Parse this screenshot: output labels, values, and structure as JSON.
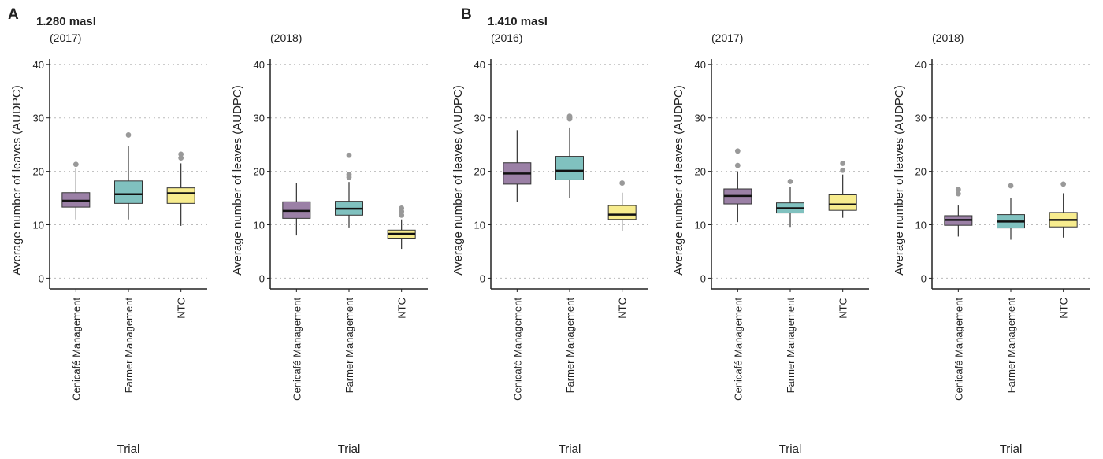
{
  "panel_groups": [
    {
      "label": "A",
      "site": "1.280 masl"
    },
    {
      "label": "B",
      "site": "1.410 masl"
    }
  ],
  "common": {
    "ylabel": "Average number of leaves  (AUDPC)",
    "xlabel": "Trial",
    "yticks": [
      0,
      10,
      20,
      30,
      40
    ],
    "ylim": [
      -2,
      41
    ],
    "categories": [
      "Cenicafé Management",
      "Farmer Management",
      "NTC"
    ]
  },
  "colors": {
    "Cenicafé Management": "#9b80a6",
    "Farmer Management": "#80c1bf",
    "NTC": "#f7ec8e",
    "outlier": "#999999",
    "grid": "#bbbbbb",
    "axis": "#222222"
  },
  "chart_data": [
    {
      "type": "box",
      "group": "A",
      "year": "(2017)",
      "categories": [
        "Cenicafé Management",
        "Farmer Management",
        "NTC"
      ],
      "ylabel": "Average number of leaves  (AUDPC)",
      "xlabel": "Trial",
      "ylim": [
        -2,
        41
      ],
      "boxes": [
        {
          "name": "Cenicafé Management",
          "min": 11,
          "q1": 13.3,
          "median": 14.5,
          "q3": 16,
          "max": 20.5,
          "outliers": [
            21.3
          ]
        },
        {
          "name": "Farmer Management",
          "min": 11,
          "q1": 14,
          "median": 15.7,
          "q3": 18.2,
          "max": 24.8,
          "outliers": [
            26.8
          ]
        },
        {
          "name": "NTC",
          "min": 9.8,
          "q1": 14,
          "median": 15.9,
          "q3": 16.9,
          "max": 21.5,
          "outliers": [
            22.5,
            23.2
          ]
        }
      ]
    },
    {
      "type": "box",
      "group": "A",
      "year": "(2018)",
      "categories": [
        "Cenicafé Management",
        "Farmer Management",
        "NTC"
      ],
      "ylabel": "Average number of leaves  (AUDPC)",
      "xlabel": "Trial",
      "ylim": [
        -2,
        41
      ],
      "boxes": [
        {
          "name": "Cenicafé Management",
          "min": 8,
          "q1": 11.2,
          "median": 12.6,
          "q3": 14.3,
          "max": 17.8,
          "outliers": []
        },
        {
          "name": "Farmer Management",
          "min": 9.5,
          "q1": 11.8,
          "median": 13,
          "q3": 14.4,
          "max": 18,
          "outliers": [
            18.9,
            19.4,
            23
          ]
        },
        {
          "name": "NTC",
          "min": 5.5,
          "q1": 7.5,
          "median": 8.3,
          "q3": 9,
          "max": 11,
          "outliers": [
            11.8,
            12.5,
            13.1
          ]
        }
      ]
    },
    {
      "type": "box",
      "group": "B",
      "year": "(2016)",
      "categories": [
        "Cenicafé Management",
        "Farmer Management",
        "NTC"
      ],
      "ylabel": "Average number of leaves  (AUDPC)",
      "xlabel": "Trial",
      "ylim": [
        -2,
        41
      ],
      "boxes": [
        {
          "name": "Cenicafé Management",
          "min": 14.2,
          "q1": 17.6,
          "median": 19.6,
          "q3": 21.6,
          "max": 27.7,
          "outliers": []
        },
        {
          "name": "Farmer Management",
          "min": 15,
          "q1": 18.4,
          "median": 20.1,
          "q3": 22.8,
          "max": 28.2,
          "outliers": [
            29.8,
            30.3
          ]
        },
        {
          "name": "NTC",
          "min": 8.8,
          "q1": 11,
          "median": 11.9,
          "q3": 13.6,
          "max": 16,
          "outliers": [
            17.8
          ]
        }
      ]
    },
    {
      "type": "box",
      "group": "B",
      "year": "(2017)",
      "categories": [
        "Cenicafé Management",
        "Farmer Management",
        "NTC"
      ],
      "ylabel": "Average number of leaves  (AUDPC)",
      "xlabel": "Trial",
      "ylim": [
        -2,
        41
      ],
      "boxes": [
        {
          "name": "Cenicafé Management",
          "min": 10.5,
          "q1": 13.9,
          "median": 15.4,
          "q3": 16.7,
          "max": 20,
          "outliers": [
            21.1,
            23.8
          ]
        },
        {
          "name": "Farmer Management",
          "min": 9.6,
          "q1": 12.2,
          "median": 13.1,
          "q3": 14.1,
          "max": 17,
          "outliers": [
            18.1
          ]
        },
        {
          "name": "NTC",
          "min": 11.3,
          "q1": 12.7,
          "median": 13.8,
          "q3": 15.6,
          "max": 19.4,
          "outliers": [
            20.2,
            21.5
          ]
        }
      ]
    },
    {
      "type": "box",
      "group": "B",
      "year": "(2018)",
      "categories": [
        "Cenicafé Management",
        "Farmer Management",
        "NTC"
      ],
      "ylabel": "Average number of leaves  (AUDPC)",
      "xlabel": "Trial",
      "ylim": [
        -2,
        41
      ],
      "boxes": [
        {
          "name": "Cenicafé Management",
          "min": 7.8,
          "q1": 9.9,
          "median": 10.9,
          "q3": 11.7,
          "max": 13.6,
          "outliers": [
            15.8,
            16.6
          ]
        },
        {
          "name": "Farmer Management",
          "min": 7.2,
          "q1": 9.4,
          "median": 10.6,
          "q3": 11.9,
          "max": 15,
          "outliers": [
            17.3
          ]
        },
        {
          "name": "NTC",
          "min": 7.6,
          "q1": 9.6,
          "median": 10.9,
          "q3": 12.3,
          "max": 15.9,
          "outliers": [
            17.6
          ]
        }
      ]
    }
  ]
}
